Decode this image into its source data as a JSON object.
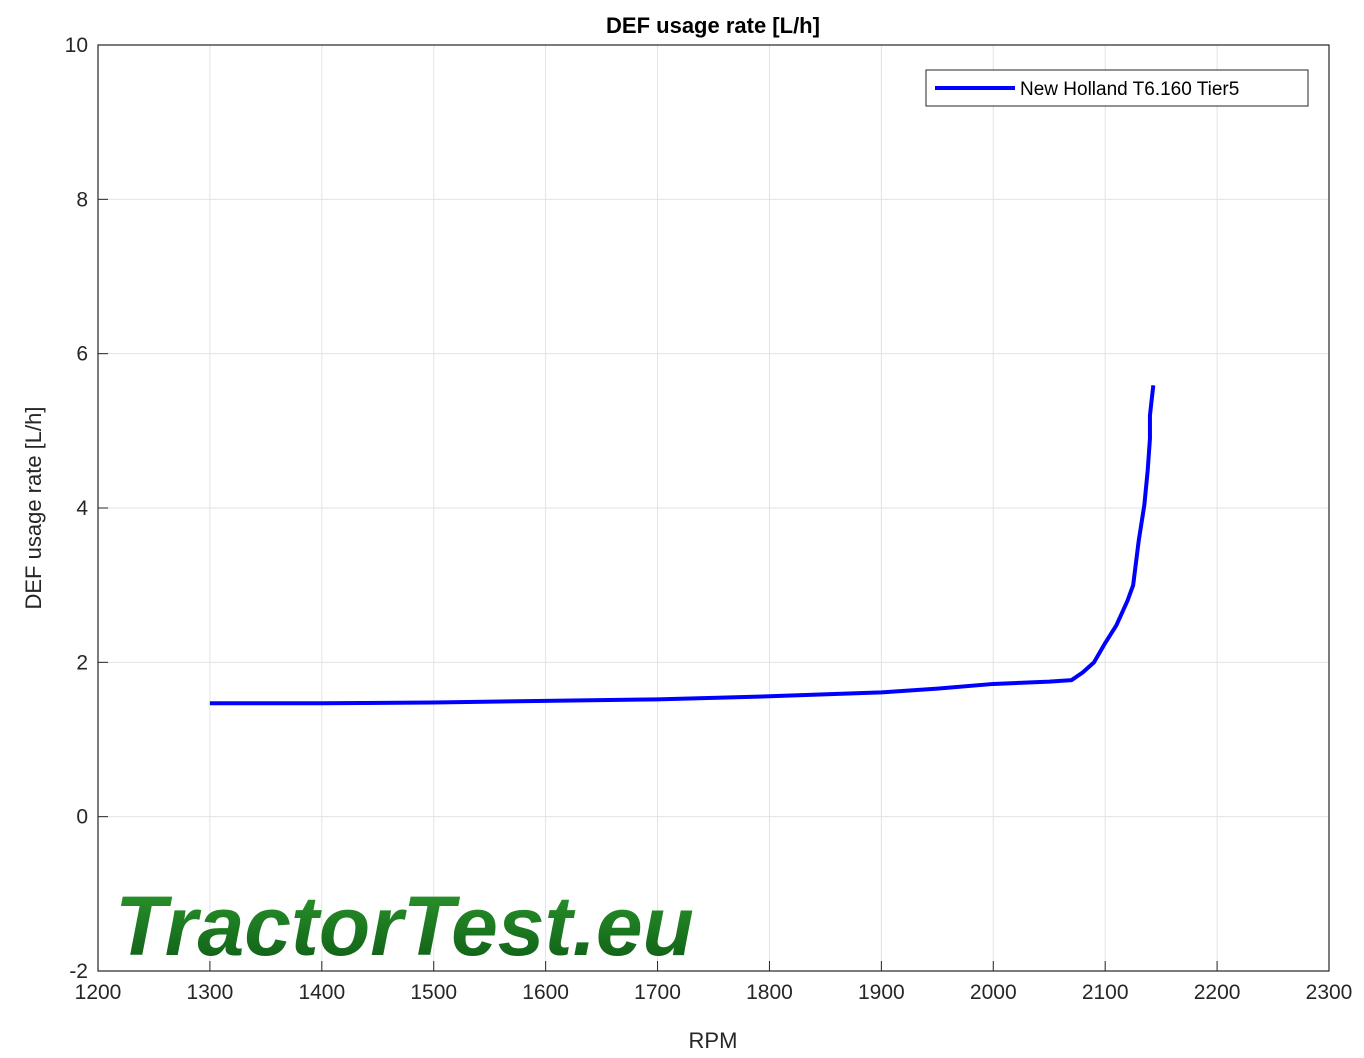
{
  "chart_data": {
    "type": "line",
    "title": "DEF usage rate [L/h]",
    "xlabel": "RPM",
    "ylabel": "DEF usage rate [L/h]",
    "watermark": "TractorTest.eu",
    "xlim": [
      1200,
      2300
    ],
    "ylim": [
      -2,
      10
    ],
    "xticks": [
      1200,
      1300,
      1400,
      1500,
      1600,
      1700,
      1800,
      1900,
      2000,
      2100,
      2200,
      2300
    ],
    "yticks": [
      -2,
      0,
      2,
      4,
      6,
      8,
      10
    ],
    "grid": true,
    "legend": "upper right",
    "x": [
      1300,
      1400,
      1500,
      1600,
      1700,
      1800,
      1900,
      1950,
      2000,
      2050,
      2070,
      2080,
      2090,
      2100,
      2110,
      2120,
      2125,
      2130,
      2135,
      2138,
      2140,
      2140,
      2143
    ],
    "series": [
      {
        "name": "New Holland T6.160 Tier5",
        "color": "#0000ff",
        "values": [
          1.47,
          1.47,
          1.48,
          1.5,
          1.52,
          1.56,
          1.61,
          1.66,
          1.72,
          1.75,
          1.77,
          1.87,
          2.0,
          2.25,
          2.48,
          2.8,
          3.0,
          3.58,
          4.04,
          4.49,
          4.9,
          5.2,
          5.59
        ]
      }
    ]
  }
}
